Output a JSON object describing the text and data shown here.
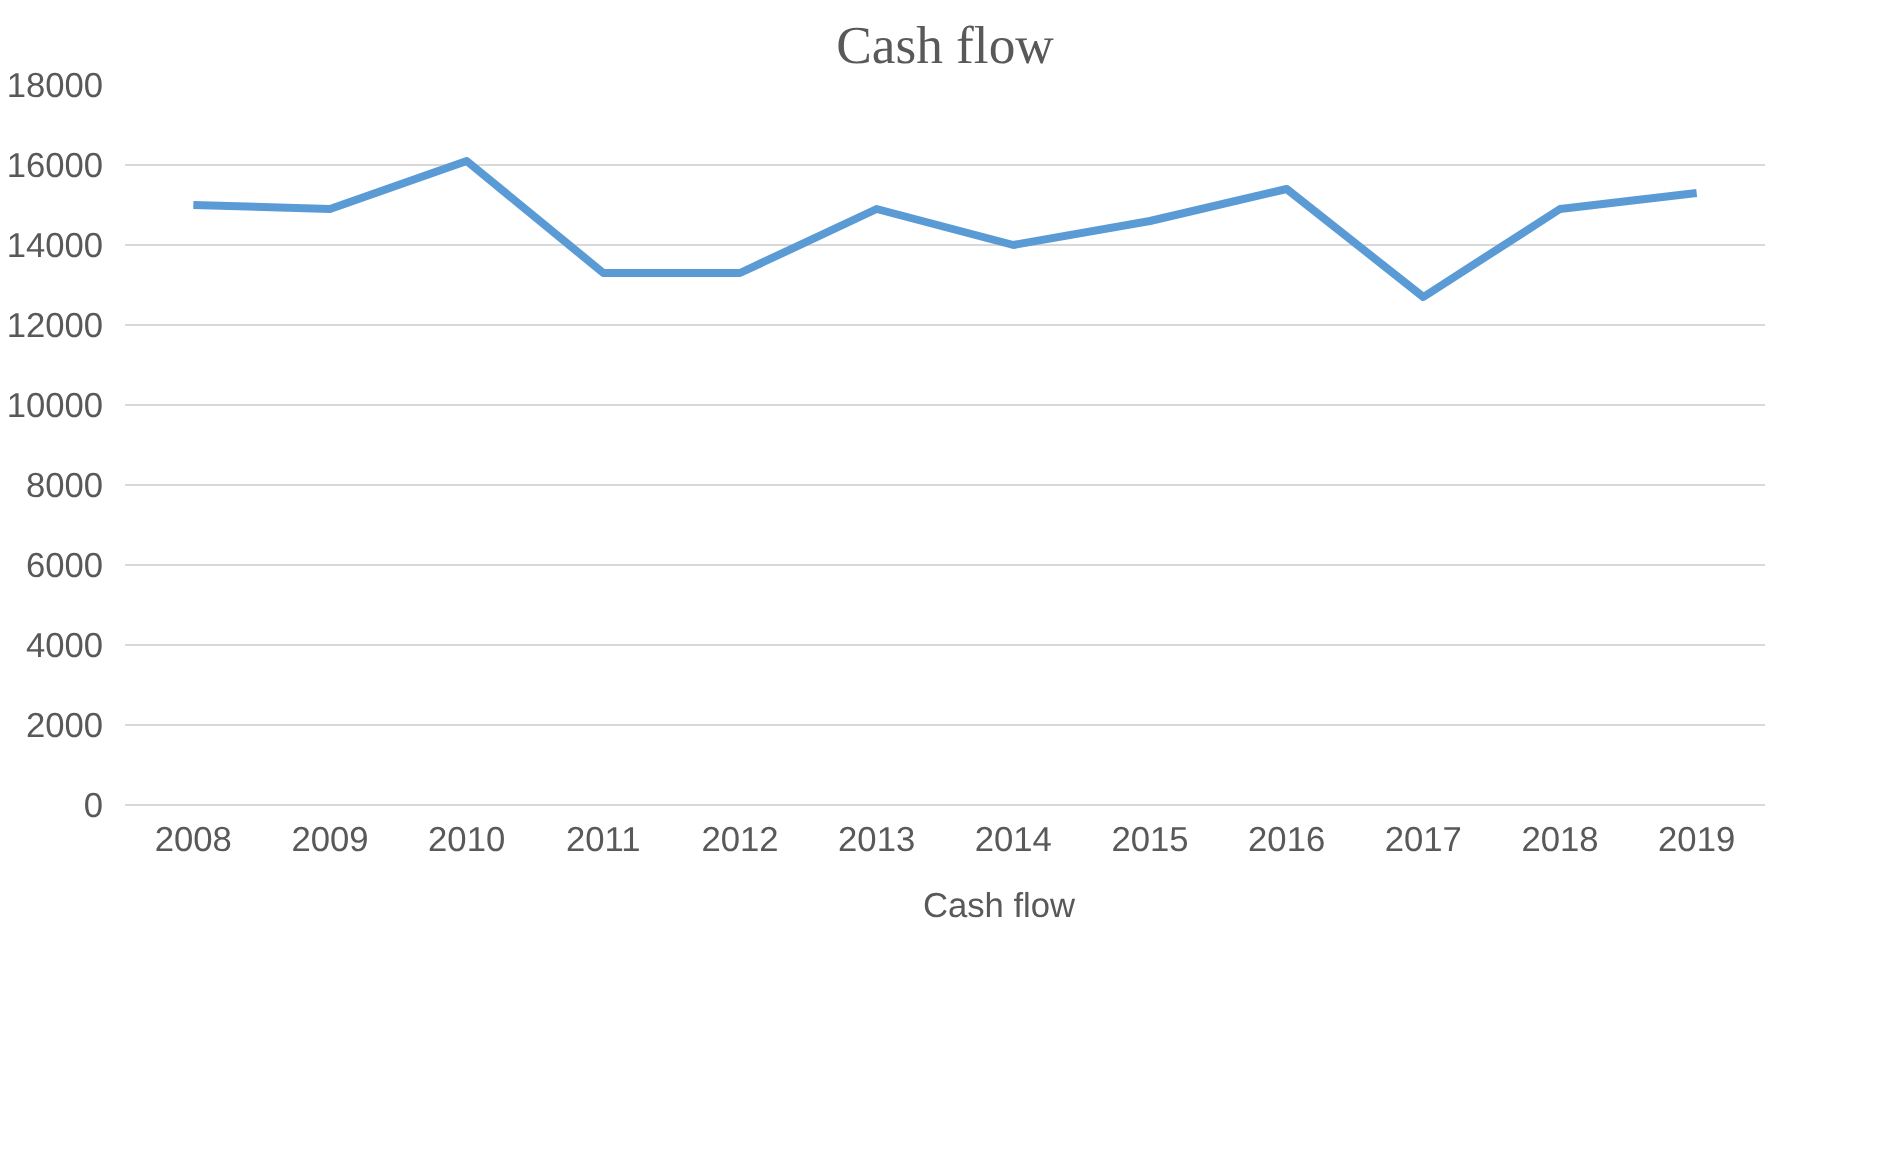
{
  "chart_data": {
    "type": "line",
    "title": "Cash flow",
    "categories": [
      "2008",
      "2009",
      "2010",
      "2011",
      "2012",
      "2013",
      "2014",
      "2015",
      "2016",
      "2017",
      "2018",
      "2019"
    ],
    "series": [
      {
        "name": "Cash flow",
        "color": "#5b9bd5",
        "values": [
          15000,
          14900,
          16100,
          13300,
          13300,
          14900,
          14000,
          14600,
          15400,
          12700,
          14900,
          15300
        ]
      }
    ],
    "ylim": [
      0,
      18000
    ],
    "yticks": [
      0,
      2000,
      4000,
      6000,
      8000,
      10000,
      12000,
      14000,
      16000,
      18000
    ],
    "grid": "y",
    "legend": "bottom",
    "marker": "none",
    "line_style": "solid"
  }
}
